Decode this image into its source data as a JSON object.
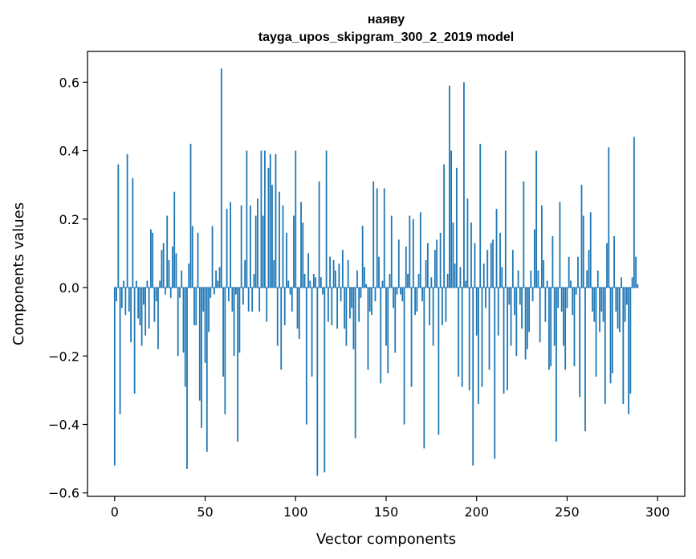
{
  "chart_data": {
    "type": "bar",
    "title": "наяву",
    "subtitle": "tayga_upos_skipgram_300_2_2019 model",
    "xlabel": "Vector components",
    "ylabel": "Components values",
    "xlim": [
      -15,
      315
    ],
    "ylim": [
      -0.61,
      0.69
    ],
    "x_ticks": [
      0,
      50,
      100,
      150,
      200,
      250,
      300
    ],
    "y_ticks": [
      -0.6,
      -0.4,
      -0.2,
      0.0,
      0.2,
      0.4,
      0.6
    ],
    "y_tick_labels": [
      "−0.6",
      "−0.4",
      "−0.2",
      "0.0",
      "0.2",
      "0.4",
      "0.6"
    ],
    "bar_color": "#1f77b4",
    "grid": false,
    "values": [
      -0.52,
      -0.04,
      0.36,
      -0.37,
      -0.06,
      0.02,
      -0.08,
      0.39,
      -0.07,
      -0.16,
      0.32,
      -0.31,
      0.02,
      -0.09,
      -0.11,
      -0.17,
      -0.05,
      -0.14,
      0.02,
      -0.12,
      0.17,
      0.16,
      -0.1,
      -0.04,
      -0.18,
      0.02,
      0.11,
      0.13,
      -0.02,
      0.21,
      0.08,
      -0.03,
      0.12,
      0.28,
      0.1,
      -0.2,
      -0.03,
      0.05,
      -0.19,
      -0.29,
      -0.53,
      0.07,
      0.42,
      0.18,
      -0.11,
      -0.11,
      0.16,
      -0.33,
      -0.41,
      -0.07,
      -0.22,
      -0.48,
      -0.13,
      -0.03,
      0.18,
      -0.02,
      0.05,
      0.02,
      0.06,
      0.64,
      -0.26,
      -0.37,
      0.23,
      -0.04,
      0.25,
      -0.07,
      -0.2,
      -0.02,
      -0.45,
      -0.19,
      0.24,
      -0.05,
      0.08,
      0.4,
      -0.07,
      0.24,
      -0.07,
      0.04,
      0.21,
      0.26,
      -0.07,
      0.4,
      0.21,
      0.4,
      -0.1,
      0.35,
      0.39,
      0.3,
      0.08,
      0.39,
      -0.17,
      0.28,
      -0.24,
      0.24,
      -0.11,
      0.16,
      0.02,
      -0.02,
      -0.07,
      0.21,
      0.4,
      -0.12,
      -0.15,
      0.25,
      0.19,
      0.04,
      -0.4,
      0.1,
      0.02,
      -0.26,
      0.04,
      0.03,
      -0.55,
      0.31,
      0.03,
      -0.02,
      -0.54,
      0.4,
      -0.1,
      0.09,
      -0.11,
      0.08,
      0.05,
      -0.12,
      0.07,
      -0.04,
      0.11,
      -0.12,
      -0.17,
      0.08,
      -0.09,
      -0.06,
      -0.18,
      -0.44,
      0.05,
      -0.1,
      -0.03,
      0.18,
      0.06,
      0.01,
      -0.24,
      -0.07,
      -0.08,
      0.31,
      -0.04,
      0.29,
      0.09,
      -0.28,
      0.02,
      0.29,
      -0.17,
      -0.25,
      0.04,
      0.21,
      -0.06,
      -0.19,
      -0.02,
      0.14,
      -0.02,
      -0.04,
      -0.4,
      0.12,
      0.04,
      0.21,
      -0.29,
      0.2,
      -0.08,
      -0.07,
      0.04,
      0.22,
      -0.04,
      -0.47,
      0.08,
      0.13,
      -0.11,
      0.03,
      -0.17,
      0.11,
      0.14,
      -0.43,
      0.16,
      -0.11,
      0.36,
      -0.1,
      0.04,
      0.59,
      0.4,
      0.19,
      0.07,
      0.35,
      -0.26,
      0.06,
      -0.29,
      0.6,
      0.02,
      0.26,
      -0.3,
      0.19,
      -0.52,
      0.13,
      -0.14,
      -0.34,
      0.42,
      -0.29,
      0.07,
      -0.06,
      0.11,
      -0.24,
      0.13,
      0.14,
      -0.5,
      0.23,
      -0.14,
      0.16,
      0.06,
      -0.31,
      0.4,
      -0.3,
      -0.05,
      -0.17,
      0.11,
      -0.08,
      -0.2,
      0.05,
      -0.05,
      -0.12,
      0.31,
      -0.21,
      -0.18,
      -0.13,
      0.05,
      -0.04,
      0.17,
      0.4,
      0.05,
      -0.16,
      0.24,
      0.08,
      -0.1,
      0.02,
      -0.24,
      -0.23,
      0.15,
      -0.17,
      -0.45,
      -0.06,
      0.25,
      -0.07,
      -0.17,
      -0.24,
      -0.06,
      0.09,
      0.02,
      -0.08,
      -0.23,
      -0.02,
      0.09,
      -0.32,
      0.3,
      0.21,
      -0.42,
      0.05,
      0.11,
      0.22,
      -0.07,
      -0.1,
      -0.26,
      0.05,
      -0.13,
      -0.07,
      -0.1,
      -0.34,
      0.13,
      0.41,
      -0.28,
      -0.25,
      0.15,
      -0.07,
      -0.12,
      -0.13,
      0.03,
      -0.34,
      -0.1,
      -0.05,
      -0.37,
      -0.31,
      0.03,
      0.44,
      0.09,
      0.01
    ]
  }
}
